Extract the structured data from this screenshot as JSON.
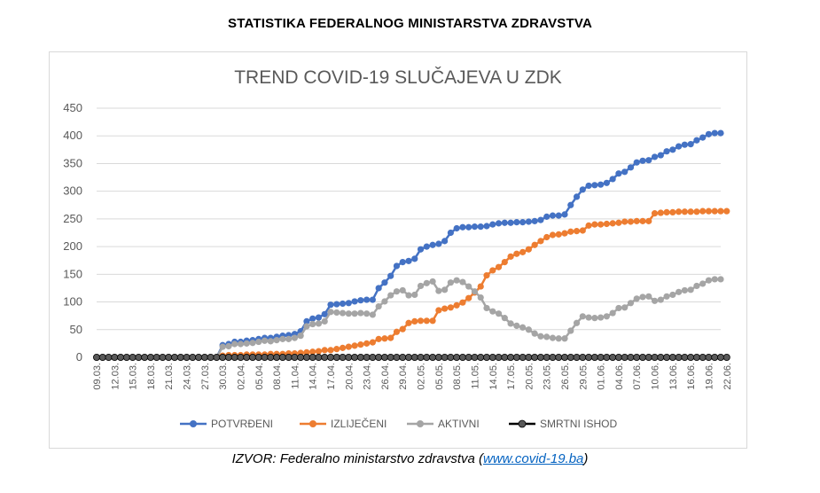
{
  "header": {
    "title": "STATISTIKA FEDERALNOG MINISTARSTVA ZDRAVSTVA"
  },
  "source": {
    "prefix": "IZVOR: Federalno ministarstvo zdravstva (",
    "link": "www.covid-19.ba",
    "suffix": ")"
  },
  "chart_data": {
    "type": "line",
    "title": "TREND COVID-19 SLUČAJEVA U ZDK",
    "xlabel": "",
    "ylabel": "",
    "ylim": [
      0,
      450
    ],
    "yticks": [
      0,
      50,
      100,
      150,
      200,
      250,
      300,
      350,
      400,
      450
    ],
    "grid": true,
    "legend_position": "bottom",
    "x_start": "09.03.",
    "x_end": "22.06.",
    "tick_labels": [
      "09.03.",
      "12.03.",
      "15.03.",
      "18.03.",
      "21.03.",
      "24.03.",
      "27.03.",
      "30.03.",
      "02.04.",
      "05.04.",
      "08.04.",
      "11.04.",
      "14.04.",
      "17.04.",
      "20.04.",
      "23.04.",
      "26.04.",
      "29.04.",
      "02.05.",
      "05.05.",
      "08.05.",
      "11.05.",
      "14.05.",
      "17.05.",
      "20.05.",
      "23.05.",
      "26.05.",
      "29.05.",
      "01.06.",
      "04.06.",
      "07.06.",
      "10.06.",
      "13.06.",
      "16.06.",
      "19.06.",
      "22.06."
    ],
    "series": [
      {
        "name": "POTVRĐENI",
        "color": "#4472c4",
        "values": [
          0,
          0,
          0,
          0,
          0,
          0,
          0,
          0,
          0,
          0,
          0,
          0,
          0,
          0,
          0,
          0,
          0,
          0,
          0,
          0,
          0,
          22,
          24,
          28,
          28,
          30,
          31,
          33,
          35,
          35,
          37,
          39,
          40,
          42,
          47,
          65,
          70,
          72,
          78,
          95,
          96,
          97,
          98,
          101,
          103,
          104,
          104,
          125,
          135,
          147,
          165,
          172,
          174,
          178,
          195,
          200,
          203,
          205,
          210,
          225,
          233,
          235,
          235,
          236,
          236,
          237,
          240,
          242,
          243,
          243,
          244,
          244,
          245,
          246,
          248,
          254,
          256,
          256,
          258,
          275,
          290,
          303,
          310,
          311,
          312,
          315,
          322,
          332,
          335,
          343,
          352,
          355,
          356,
          362,
          365,
          372,
          375,
          381,
          384,
          385,
          392,
          397,
          403,
          405,
          405
        ]
      },
      {
        "name": "IZLIJEČENI",
        "color": "#ed7d31",
        "values": [
          0,
          0,
          0,
          0,
          0,
          0,
          0,
          0,
          0,
          0,
          0,
          0,
          0,
          0,
          0,
          0,
          0,
          0,
          0,
          0,
          0,
          3,
          4,
          4,
          4,
          5,
          5,
          5,
          5,
          6,
          6,
          6,
          7,
          7,
          8,
          9,
          10,
          11,
          13,
          13,
          15,
          17,
          19,
          21,
          23,
          25,
          27,
          33,
          34,
          35,
          46,
          51,
          62,
          65,
          66,
          66,
          66,
          85,
          88,
          90,
          94,
          99,
          107,
          117,
          128,
          148,
          157,
          163,
          172,
          182,
          187,
          190,
          195,
          203,
          210,
          217,
          221,
          222,
          224,
          227,
          228,
          229,
          238,
          240,
          240,
          241,
          242,
          243,
          245,
          245,
          246,
          246,
          246,
          260,
          261,
          262,
          262,
          263,
          263,
          263,
          263,
          264,
          264,
          264,
          264,
          264
        ]
      },
      {
        "name": "AKTIVNI",
        "color": "#a5a5a5",
        "values": [
          0,
          0,
          0,
          0,
          0,
          0,
          0,
          0,
          0,
          0,
          0,
          0,
          0,
          0,
          0,
          0,
          0,
          0,
          0,
          0,
          0,
          19,
          20,
          24,
          24,
          25,
          26,
          28,
          30,
          29,
          31,
          33,
          33,
          35,
          39,
          56,
          60,
          61,
          65,
          82,
          81,
          80,
          79,
          79,
          80,
          79,
          77,
          92,
          101,
          112,
          119,
          121,
          112,
          113,
          129,
          134,
          137,
          120,
          122,
          135,
          139,
          136,
          128,
          119,
          108,
          89,
          83,
          79,
          71,
          61,
          57,
          54,
          50,
          43,
          38,
          37,
          35,
          34,
          34,
          48,
          62,
          74,
          72,
          71,
          72,
          74,
          80,
          89,
          90,
          98,
          106,
          109,
          110,
          102,
          104,
          110,
          113,
          118,
          121,
          122,
          129,
          133,
          139,
          141,
          141
        ]
      },
      {
        "name": "SMRTNI ISHOD",
        "color": "#000000",
        "values": [
          0,
          0,
          0,
          0,
          0,
          0,
          0,
          0,
          0,
          0,
          0,
          0,
          0,
          0,
          0,
          0,
          0,
          0,
          0,
          0,
          0,
          0,
          0,
          0,
          0,
          0,
          0,
          0,
          0,
          0,
          0,
          0,
          0,
          0,
          0,
          0,
          0,
          0,
          0,
          0,
          0,
          0,
          0,
          0,
          0,
          0,
          0,
          0,
          0,
          0,
          0,
          0,
          0,
          0,
          0,
          0,
          0,
          0,
          0,
          0,
          0,
          0,
          0,
          0,
          0,
          0,
          0,
          0,
          0,
          0,
          0,
          0,
          0,
          0,
          0,
          0,
          0,
          0,
          0,
          0,
          0,
          0,
          0,
          0,
          0,
          0,
          0,
          0,
          0,
          0,
          0,
          0,
          0,
          0,
          0,
          0,
          0,
          0,
          0,
          0,
          0,
          0,
          0,
          0,
          0,
          0
        ]
      }
    ]
  }
}
